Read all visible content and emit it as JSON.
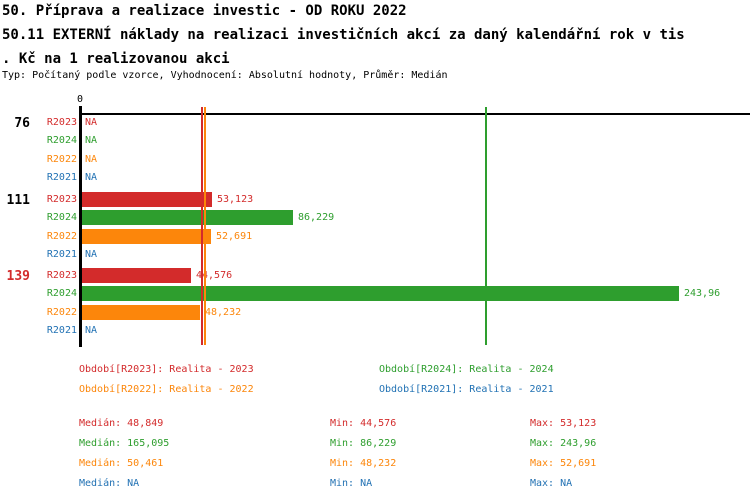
{
  "title": {
    "line1": "50. Příprava a realizace investic - OD ROKU 2022",
    "line2": "50.11 EXTERNÍ náklady na realizaci investičních akcí za daný kalendářní rok v tis",
    "line3": ". Kč na 1 realizovanou akci",
    "meta": "Typ: Počítaný podle vzorce, Vyhodnocení: Absolutní hodnoty, Průměr: Medián"
  },
  "colors": {
    "R2023": "#d32b2b",
    "R2024": "#2e9e2e",
    "R2022": "#fc860b",
    "R2021": "#2272b4",
    "axis": "#000000"
  },
  "chart_data": {
    "type": "bar",
    "orientation": "horizontal",
    "title": "50.11 EXTERNÍ náklady na realizaci investičních akcí za daný kalendářní rok v tis. Kč na 1 realizovanou akci",
    "value_axis": {
      "tick0": "0",
      "xmax": 273
    },
    "series_order": [
      "R2023",
      "R2024",
      "R2022",
      "R2021"
    ],
    "groups": [
      {
        "label": "76",
        "label_color": "#000000",
        "bars": [
          {
            "series": "R2023",
            "value": null,
            "display": "NA"
          },
          {
            "series": "R2024",
            "value": null,
            "display": "NA"
          },
          {
            "series": "R2022",
            "value": null,
            "display": "NA"
          },
          {
            "series": "R2021",
            "value": null,
            "display": "NA"
          }
        ]
      },
      {
        "label": "111",
        "label_color": "#000000",
        "bars": [
          {
            "series": "R2023",
            "value": 53.123,
            "display": "53,123"
          },
          {
            "series": "R2024",
            "value": 86.229,
            "display": "86,229"
          },
          {
            "series": "R2022",
            "value": 52.691,
            "display": "52,691"
          },
          {
            "series": "R2021",
            "value": null,
            "display": "NA"
          }
        ]
      },
      {
        "label": "139",
        "label_color": "#d32b2b",
        "bars": [
          {
            "series": "R2023",
            "value": 44.576,
            "display": "44,576"
          },
          {
            "series": "R2024",
            "value": 243.961,
            "display": "243,96"
          },
          {
            "series": "R2022",
            "value": 48.232,
            "display": "48,232"
          },
          {
            "series": "R2021",
            "value": null,
            "display": "NA"
          }
        ]
      }
    ],
    "median_lines": [
      {
        "series": "R2023",
        "value": 48.849
      },
      {
        "series": "R2022",
        "value": 50.461
      },
      {
        "series": "R2024",
        "value": 165.095
      }
    ]
  },
  "legend": [
    {
      "series": "R2023",
      "label": "Období[R2023]: Realita - 2023",
      "col": 0,
      "row": 0
    },
    {
      "series": "R2024",
      "label": "Období[R2024]: Realita - 2024",
      "col": 1,
      "row": 0
    },
    {
      "series": "R2022",
      "label": "Období[R2022]: Realita - 2022",
      "col": 0,
      "row": 1
    },
    {
      "series": "R2021",
      "label": "Období[R2021]: Realita - 2021",
      "col": 1,
      "row": 1
    }
  ],
  "stats": [
    {
      "series": "R2023",
      "median": "Medián: 48,849",
      "min": "Min: 44,576",
      "max": "Max: 53,123"
    },
    {
      "series": "R2024",
      "median": "Medián: 165,095",
      "min": "Min: 86,229",
      "max": "Max: 243,96"
    },
    {
      "series": "R2022",
      "median": "Medián: 50,461",
      "min": "Min: 48,232",
      "max": "Max: 52,691"
    },
    {
      "series": "R2021",
      "median": "Medián: NA",
      "min": "Min: NA",
      "max": "Max: NA"
    }
  ]
}
